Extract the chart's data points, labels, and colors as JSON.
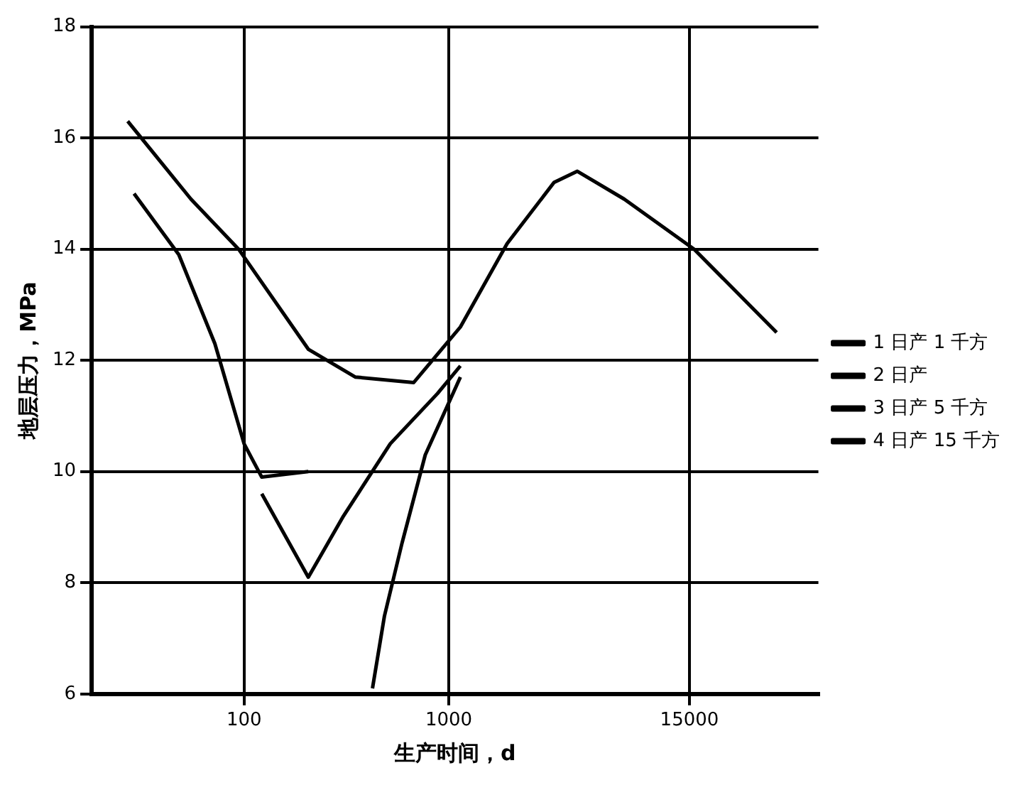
{
  "chart_data": {
    "type": "line",
    "xlabel": "生产时间，d",
    "ylabel": "地层压力，MPa",
    "log": "x",
    "xlim": [
      18,
      64000
    ],
    "xticks": [
      100,
      1000,
      15000
    ],
    "ylim": [
      6,
      18
    ],
    "yticks": [
      6,
      8,
      10,
      12,
      14,
      16,
      18
    ],
    "grid": true,
    "legend": "right",
    "marker": "none",
    "line_style": "solid",
    "series": [
      {
        "name": "1 日产 1 千方",
        "color": "#000000",
        "x": [
          27,
          55,
          94,
          206,
          349,
          674,
          1140,
          1930,
          3270,
          4250,
          7200,
          15800,
          40000
        ],
        "values": [
          16.3,
          14.9,
          14.0,
          12.2,
          11.7,
          11.6,
          12.6,
          14.1,
          15.2,
          15.4,
          14.9,
          14.0,
          12.5
        ]
      },
      {
        "name": "2 日产",
        "color": "#000000",
        "x": [
          29,
          48,
          72,
          100,
          122,
          206
        ],
        "values": [
          15.0,
          13.9,
          12.3,
          10.5,
          9.9,
          10.0
        ]
      },
      {
        "name": "3 日产 5 千方",
        "color": "#000000",
        "x": [
          122,
          206,
          306,
          518,
          880,
          1140
        ],
        "values": [
          9.6,
          8.1,
          9.2,
          10.5,
          11.4,
          11.9
        ]
      },
      {
        "name": "4 日产 15 千方",
        "color": "#000000",
        "x": [
          424,
          485,
          590,
          768,
          1140
        ],
        "values": [
          6.1,
          7.4,
          8.7,
          10.3,
          11.7
        ]
      }
    ]
  }
}
